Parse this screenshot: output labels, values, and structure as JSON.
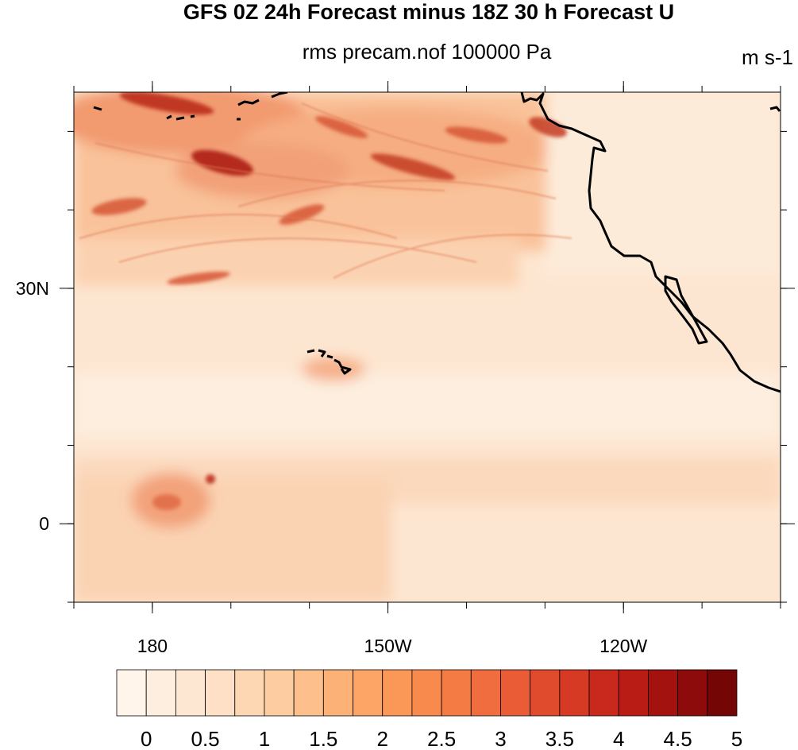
{
  "title": "GFS 0Z 24h Forecast minus 18Z 30 h Forecast U",
  "subtitle": "rms precam.nof 100000 Pa",
  "units": "m s-1",
  "map": {
    "type": "heatmap",
    "xlim": [
      170,
      260
    ],
    "ylim": [
      -10,
      55
    ],
    "x_ticks": [
      {
        "value": 180,
        "label": "180"
      },
      {
        "value": 210,
        "label": "150W"
      },
      {
        "value": 240,
        "label": "120W"
      }
    ],
    "y_ticks": [
      {
        "value": 30,
        "label": "30N"
      },
      {
        "value": 0,
        "label": "0"
      }
    ],
    "grid": false,
    "features": [
      "Hawaiian Islands",
      "Aleutian Islands",
      "North American west coast",
      "Baja California"
    ]
  },
  "colorbar": {
    "levels": [
      0,
      0.25,
      0.5,
      0.75,
      1,
      1.25,
      1.5,
      1.75,
      2,
      2.25,
      2.5,
      2.75,
      3,
      3.25,
      3.5,
      3.75,
      4,
      4.25,
      4.5,
      4.75,
      5
    ],
    "labels": [
      "0",
      "0.5",
      "1",
      "1.5",
      "2",
      "2.5",
      "3",
      "3.5",
      "4",
      "4.5",
      "5"
    ],
    "colors": [
      "#fff5eb",
      "#fdeedf",
      "#fde7d2",
      "#fde0c5",
      "#fdd7b3",
      "#fdcca0",
      "#fdbf8b",
      "#fcb277",
      "#fca566",
      "#fb9757",
      "#f88a4d",
      "#f47c44",
      "#ef6d3e",
      "#e95c36",
      "#e04a2d",
      "#d63a24",
      "#c9281c",
      "#b91b15",
      "#a3120f",
      "#8e0b0b",
      "#740606"
    ]
  }
}
